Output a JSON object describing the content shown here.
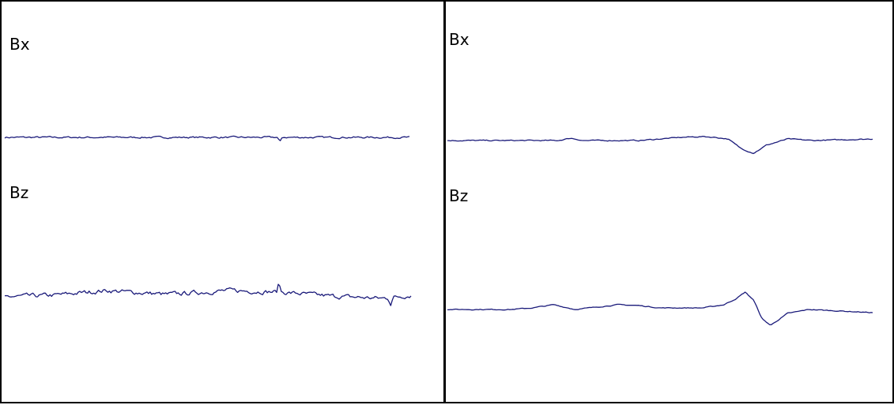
{
  "trace_color": "#1a1a7a",
  "chart_data": [
    {
      "type": "line",
      "panel": "left",
      "labels": [
        "Bx",
        "Bz"
      ],
      "series": [
        {
          "name": "Bx",
          "noise": 2.0,
          "x": [
            0,
            0.2,
            0.4,
            0.6,
            0.8,
            1.0
          ],
          "y": [
            0,
            0,
            0,
            0,
            0,
            0
          ],
          "spikes": [
            {
              "x": 0.68,
              "y": -6
            }
          ]
        },
        {
          "name": "Bz",
          "noise": 5.0,
          "x": [
            0,
            0.12,
            0.25,
            0.4,
            0.55,
            0.68,
            0.8,
            0.93,
            1.0
          ],
          "y": [
            -4,
            -2,
            4,
            -1,
            4,
            2,
            -3,
            -6,
            -2
          ],
          "spikes": [
            {
              "x": 0.675,
              "y": 12
            },
            {
              "x": 0.95,
              "y": -8
            }
          ]
        }
      ]
    },
    {
      "type": "line",
      "panel": "right",
      "labels": [
        "Bx",
        "Bz"
      ],
      "series": [
        {
          "name": "Bx",
          "noise": 1.2,
          "x": [
            0,
            0.2,
            0.26,
            0.29,
            0.32,
            0.45,
            0.5,
            0.55,
            0.6,
            0.63,
            0.66,
            0.69,
            0.72,
            0.75,
            0.8,
            0.86,
            1.0
          ],
          "y": [
            0,
            0,
            0,
            3,
            0,
            0,
            2,
            4,
            5,
            4,
            2,
            -10,
            -16,
            -6,
            2,
            0,
            2
          ],
          "spikes": []
        },
        {
          "name": "Bz",
          "noise": 1.0,
          "x": [
            0,
            0.15,
            0.2,
            0.25,
            0.3,
            0.4,
            0.45,
            0.5,
            0.6,
            0.65,
            0.68,
            0.7,
            0.72,
            0.74,
            0.76,
            0.8,
            0.85,
            1.0
          ],
          "y": [
            0,
            0,
            2,
            6,
            0,
            6,
            5,
            2,
            2,
            6,
            14,
            22,
            12,
            -12,
            -20,
            -5,
            0,
            -4
          ],
          "spikes": []
        }
      ]
    }
  ]
}
